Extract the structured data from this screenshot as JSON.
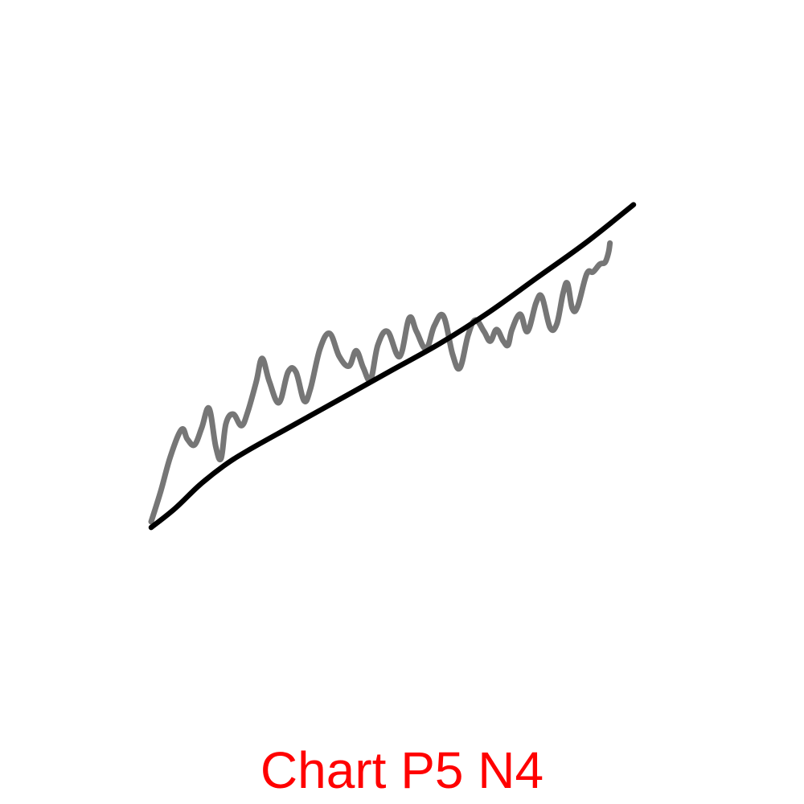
{
  "caption": {
    "text": "Chart P5 N4",
    "color": "#ff0000"
  },
  "chart_data": {
    "type": "line",
    "title": "",
    "xlabel": "",
    "ylabel": "",
    "axes_visible": false,
    "grid": false,
    "legend": "none",
    "xlim": [
      0,
      100
    ],
    "ylim": [
      0,
      100
    ],
    "series": [
      {
        "role": "raw",
        "color": "#767676",
        "x": [
          0,
          2,
          4,
          6.3,
          7.5,
          9,
          10.5,
          12,
          13.4,
          14.5,
          15.5,
          17,
          18.7,
          20,
          21.8,
          23,
          24.5,
          26.5,
          28.4,
          30,
          31.7,
          33,
          35,
          37,
          39,
          41,
          42.5,
          44,
          45.5,
          47,
          49,
          51.5,
          53.5,
          55,
          57,
          58.7,
          60.6,
          62.5,
          64,
          65.7,
          67.2,
          69,
          70.3,
          71.6,
          73,
          74,
          74.8,
          76.5,
          78,
          79.8,
          81,
          82.7,
          84.1,
          85.4,
          86.3,
          87.3,
          88.4,
          90.3,
          91.6,
          93,
          94.1,
          94.8,
          95.1
        ],
        "y": [
          6.5,
          14.5,
          23.5,
          30.5,
          28,
          26.5,
          31,
          36,
          26,
          23,
          32,
          34.5,
          31.5,
          35,
          43,
          49,
          43,
          37.5,
          45.5,
          45.5,
          38,
          41,
          51.5,
          55.5,
          49.5,
          47,
          51,
          46.5,
          43.5,
          52.5,
          56,
          49.5,
          59.5,
          56,
          51.5,
          57.5,
          60,
          50,
          46.5,
          55,
          59,
          56,
          53.5,
          56.5,
          53.5,
          52.5,
          56.5,
          60.5,
          56,
          63.5,
          65,
          57,
          58,
          66,
          68.5,
          62,
          62.5,
          71,
          71.5,
          73.5,
          74,
          76.5,
          79
        ]
      },
      {
        "role": "trend",
        "color": "#000000",
        "x": [
          0,
          5,
          10,
          15,
          20,
          30,
          40,
          50,
          60,
          70,
          80,
          90,
          100
        ],
        "y": [
          5,
          10,
          16,
          21,
          25,
          32,
          39,
          46,
          53,
          61,
          70,
          79,
          89
        ]
      }
    ]
  }
}
